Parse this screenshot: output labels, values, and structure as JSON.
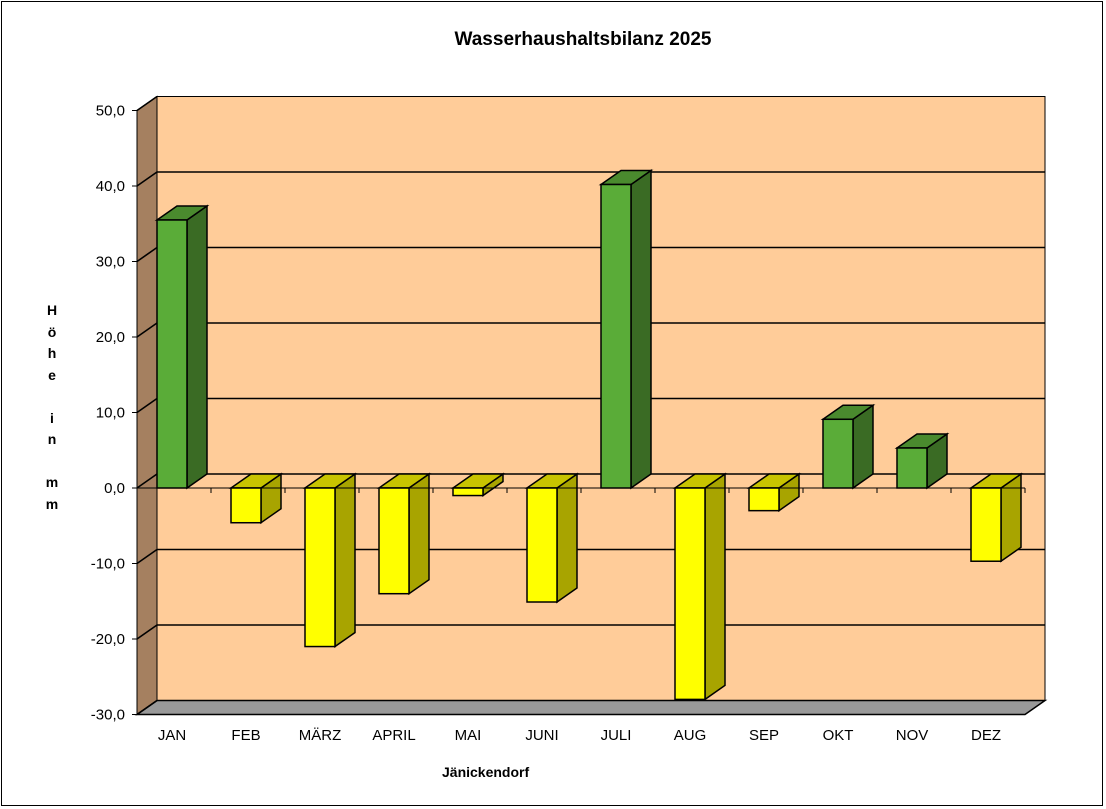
{
  "chart_data": {
    "type": "bar",
    "style": "3d-column",
    "title": "Wasserhaushaltsbilanz 2025",
    "xlabel": "Jänickendorf",
    "ylabel": "Höhe in mm",
    "ylim": [
      -30,
      50
    ],
    "ytick_step": 10,
    "yticks": [
      "50,0",
      "40,0",
      "30,0",
      "20,0",
      "10,0",
      "0,0",
      "-10,0",
      "-20,0",
      "-30,0"
    ],
    "grid": true,
    "legend": null,
    "categories": [
      "JAN",
      "FEB",
      "MÄRZ",
      "APRIL",
      "MAI",
      "JUNI",
      "JULI",
      "AUG",
      "SEP",
      "OKT",
      "NOV",
      "DEZ"
    ],
    "series": [
      {
        "name": "Wasserhaushaltsbilanz",
        "values": [
          35.5,
          -4.6,
          -21.0,
          -14.0,
          -1.0,
          -15.1,
          40.2,
          -28.0,
          -3.0,
          9.1,
          5.3,
          -9.7
        ]
      }
    ],
    "colors": {
      "positive_front": "#5aac38",
      "positive_side": "#3a6b24",
      "positive_top": "#4a8a2e",
      "negative_front": "#ffff00",
      "negative_side": "#a8a400",
      "negative_top": "#c8c400",
      "wall": "#ffcc99",
      "side_wall": "#a58060",
      "floor": "#999999"
    }
  },
  "chart": {
    "title": "Wasserhaushaltsbilanz 2025",
    "ylabel_chars": [
      "H",
      "ö",
      "h",
      "e",
      "",
      "i",
      "n",
      "",
      "m",
      "m"
    ],
    "xlabel": "Jänickendorf"
  }
}
